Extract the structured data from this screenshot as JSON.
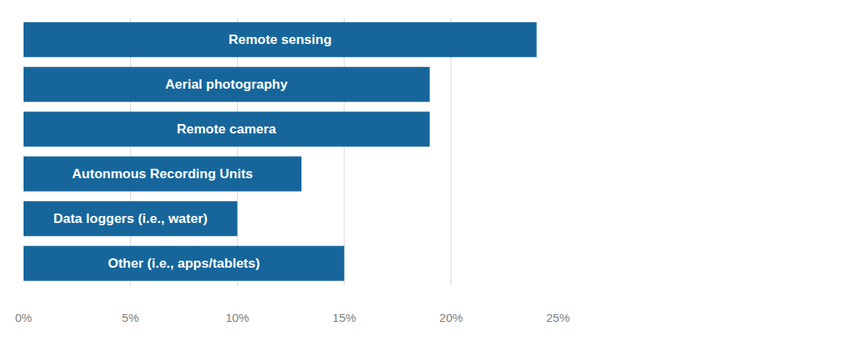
{
  "chart_data": {
    "type": "bar",
    "orientation": "horizontal",
    "categories": [
      "Remote sensing",
      "Aerial photography",
      "Remote camera",
      "Autonmous Recording Units",
      "Data loggers (i.e., water)",
      "Other (i.e., apps/tablets)"
    ],
    "values": [
      24,
      19,
      19,
      13,
      10,
      15
    ],
    "color": "#16669b",
    "xlim": [
      0,
      25
    ],
    "xticks": [
      {
        "value": 0,
        "label": "0%"
      },
      {
        "value": 5,
        "label": "5%"
      },
      {
        "value": 10,
        "label": "10%"
      },
      {
        "value": 15,
        "label": "15%"
      },
      {
        "value": 20,
        "label": "20%"
      },
      {
        "value": 25,
        "label": "25%"
      }
    ],
    "grid": true,
    "tick_labels": "x"
  }
}
